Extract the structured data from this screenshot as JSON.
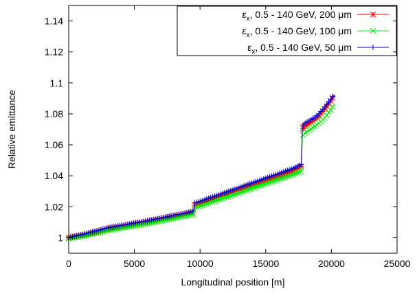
{
  "chart_data": {
    "type": "line",
    "title": "",
    "xlabel": "Longitudinal position [m]",
    "ylabel": "Relative emittance",
    "xlim": [
      0,
      25000
    ],
    "ylim": [
      0.99,
      1.15
    ],
    "xticks": [
      0,
      5000,
      10000,
      15000,
      20000,
      25000
    ],
    "xtick_labels": [
      "0",
      "5000",
      "10000",
      "15000",
      "20000",
      "25000"
    ],
    "yticks": [
      1.0,
      1.02,
      1.04,
      1.06,
      1.08,
      1.1,
      1.12,
      1.14
    ],
    "ytick_labels": [
      "1",
      "1.02",
      "1.04",
      "1.06",
      "1.08",
      "1.1",
      "1.12",
      "1.14"
    ],
    "grid": false,
    "legend_position": "top-right",
    "series": [
      {
        "name_symbol": "ε",
        "name_sub": "x",
        "name_rest": ", 0.5 - 140 GeV, 200 μm",
        "color": "#ff0000",
        "marker": "star",
        "x": [
          0,
          1000,
          2000,
          3000,
          4000,
          5000,
          6000,
          7000,
          8000,
          9000,
          9500,
          9600,
          10000,
          11000,
          12000,
          13000,
          14000,
          15000,
          16000,
          17000,
          17700,
          17800,
          18000,
          18500,
          19000,
          19500,
          20000,
          20200
        ],
        "y": [
          1.0,
          1.0015,
          1.0035,
          1.0058,
          1.0072,
          1.0088,
          1.0103,
          1.012,
          1.0138,
          1.0155,
          1.0165,
          1.021,
          1.022,
          1.025,
          1.028,
          1.031,
          1.034,
          1.037,
          1.04,
          1.043,
          1.046,
          1.07,
          1.072,
          1.075,
          1.078,
          1.083,
          1.089,
          1.092
        ]
      },
      {
        "name_symbol": "ε",
        "name_sub": "x",
        "name_rest": ", 0.5 - 140 GeV, 100 μm",
        "color": "#00ee00",
        "marker": "x",
        "x": [
          0,
          1000,
          2000,
          3000,
          4000,
          5000,
          6000,
          7000,
          8000,
          9000,
          9500,
          9600,
          10000,
          11000,
          12000,
          13000,
          14000,
          15000,
          16000,
          17000,
          17700,
          17800,
          18000,
          18500,
          19000,
          19500,
          20000,
          20200
        ],
        "y": [
          0.9995,
          1.001,
          1.0028,
          1.0048,
          1.0062,
          1.0077,
          1.0092,
          1.0108,
          1.0125,
          1.0142,
          1.0152,
          1.0195,
          1.0205,
          1.0233,
          1.0262,
          1.029,
          1.032,
          1.0348,
          1.0377,
          1.0405,
          1.0428,
          1.066,
          1.0675,
          1.0705,
          1.0735,
          1.0775,
          1.083,
          1.086
        ]
      },
      {
        "name_symbol": "ε",
        "name_sub": "x",
        "name_rest": ", 0.5 - 140 GeV, 50 μm",
        "color": "#0000cc",
        "marker": "plus",
        "x": [
          0,
          1000,
          2000,
          3000,
          4000,
          5000,
          6000,
          7000,
          8000,
          9000,
          9500,
          9600,
          10000,
          11000,
          12000,
          13000,
          14000,
          15000,
          16000,
          17000,
          17700,
          17800,
          18000,
          18500,
          19000,
          19500,
          20000,
          20200
        ],
        "y": [
          1.0002,
          1.002,
          1.0042,
          1.0065,
          1.008,
          1.0095,
          1.011,
          1.0127,
          1.0145,
          1.0162,
          1.0173,
          1.0225,
          1.0235,
          1.0265,
          1.0295,
          1.0325,
          1.0355,
          1.0385,
          1.0415,
          1.0445,
          1.0475,
          1.0725,
          1.074,
          1.0765,
          1.0795,
          1.0845,
          1.09,
          1.0925
        ]
      }
    ]
  }
}
